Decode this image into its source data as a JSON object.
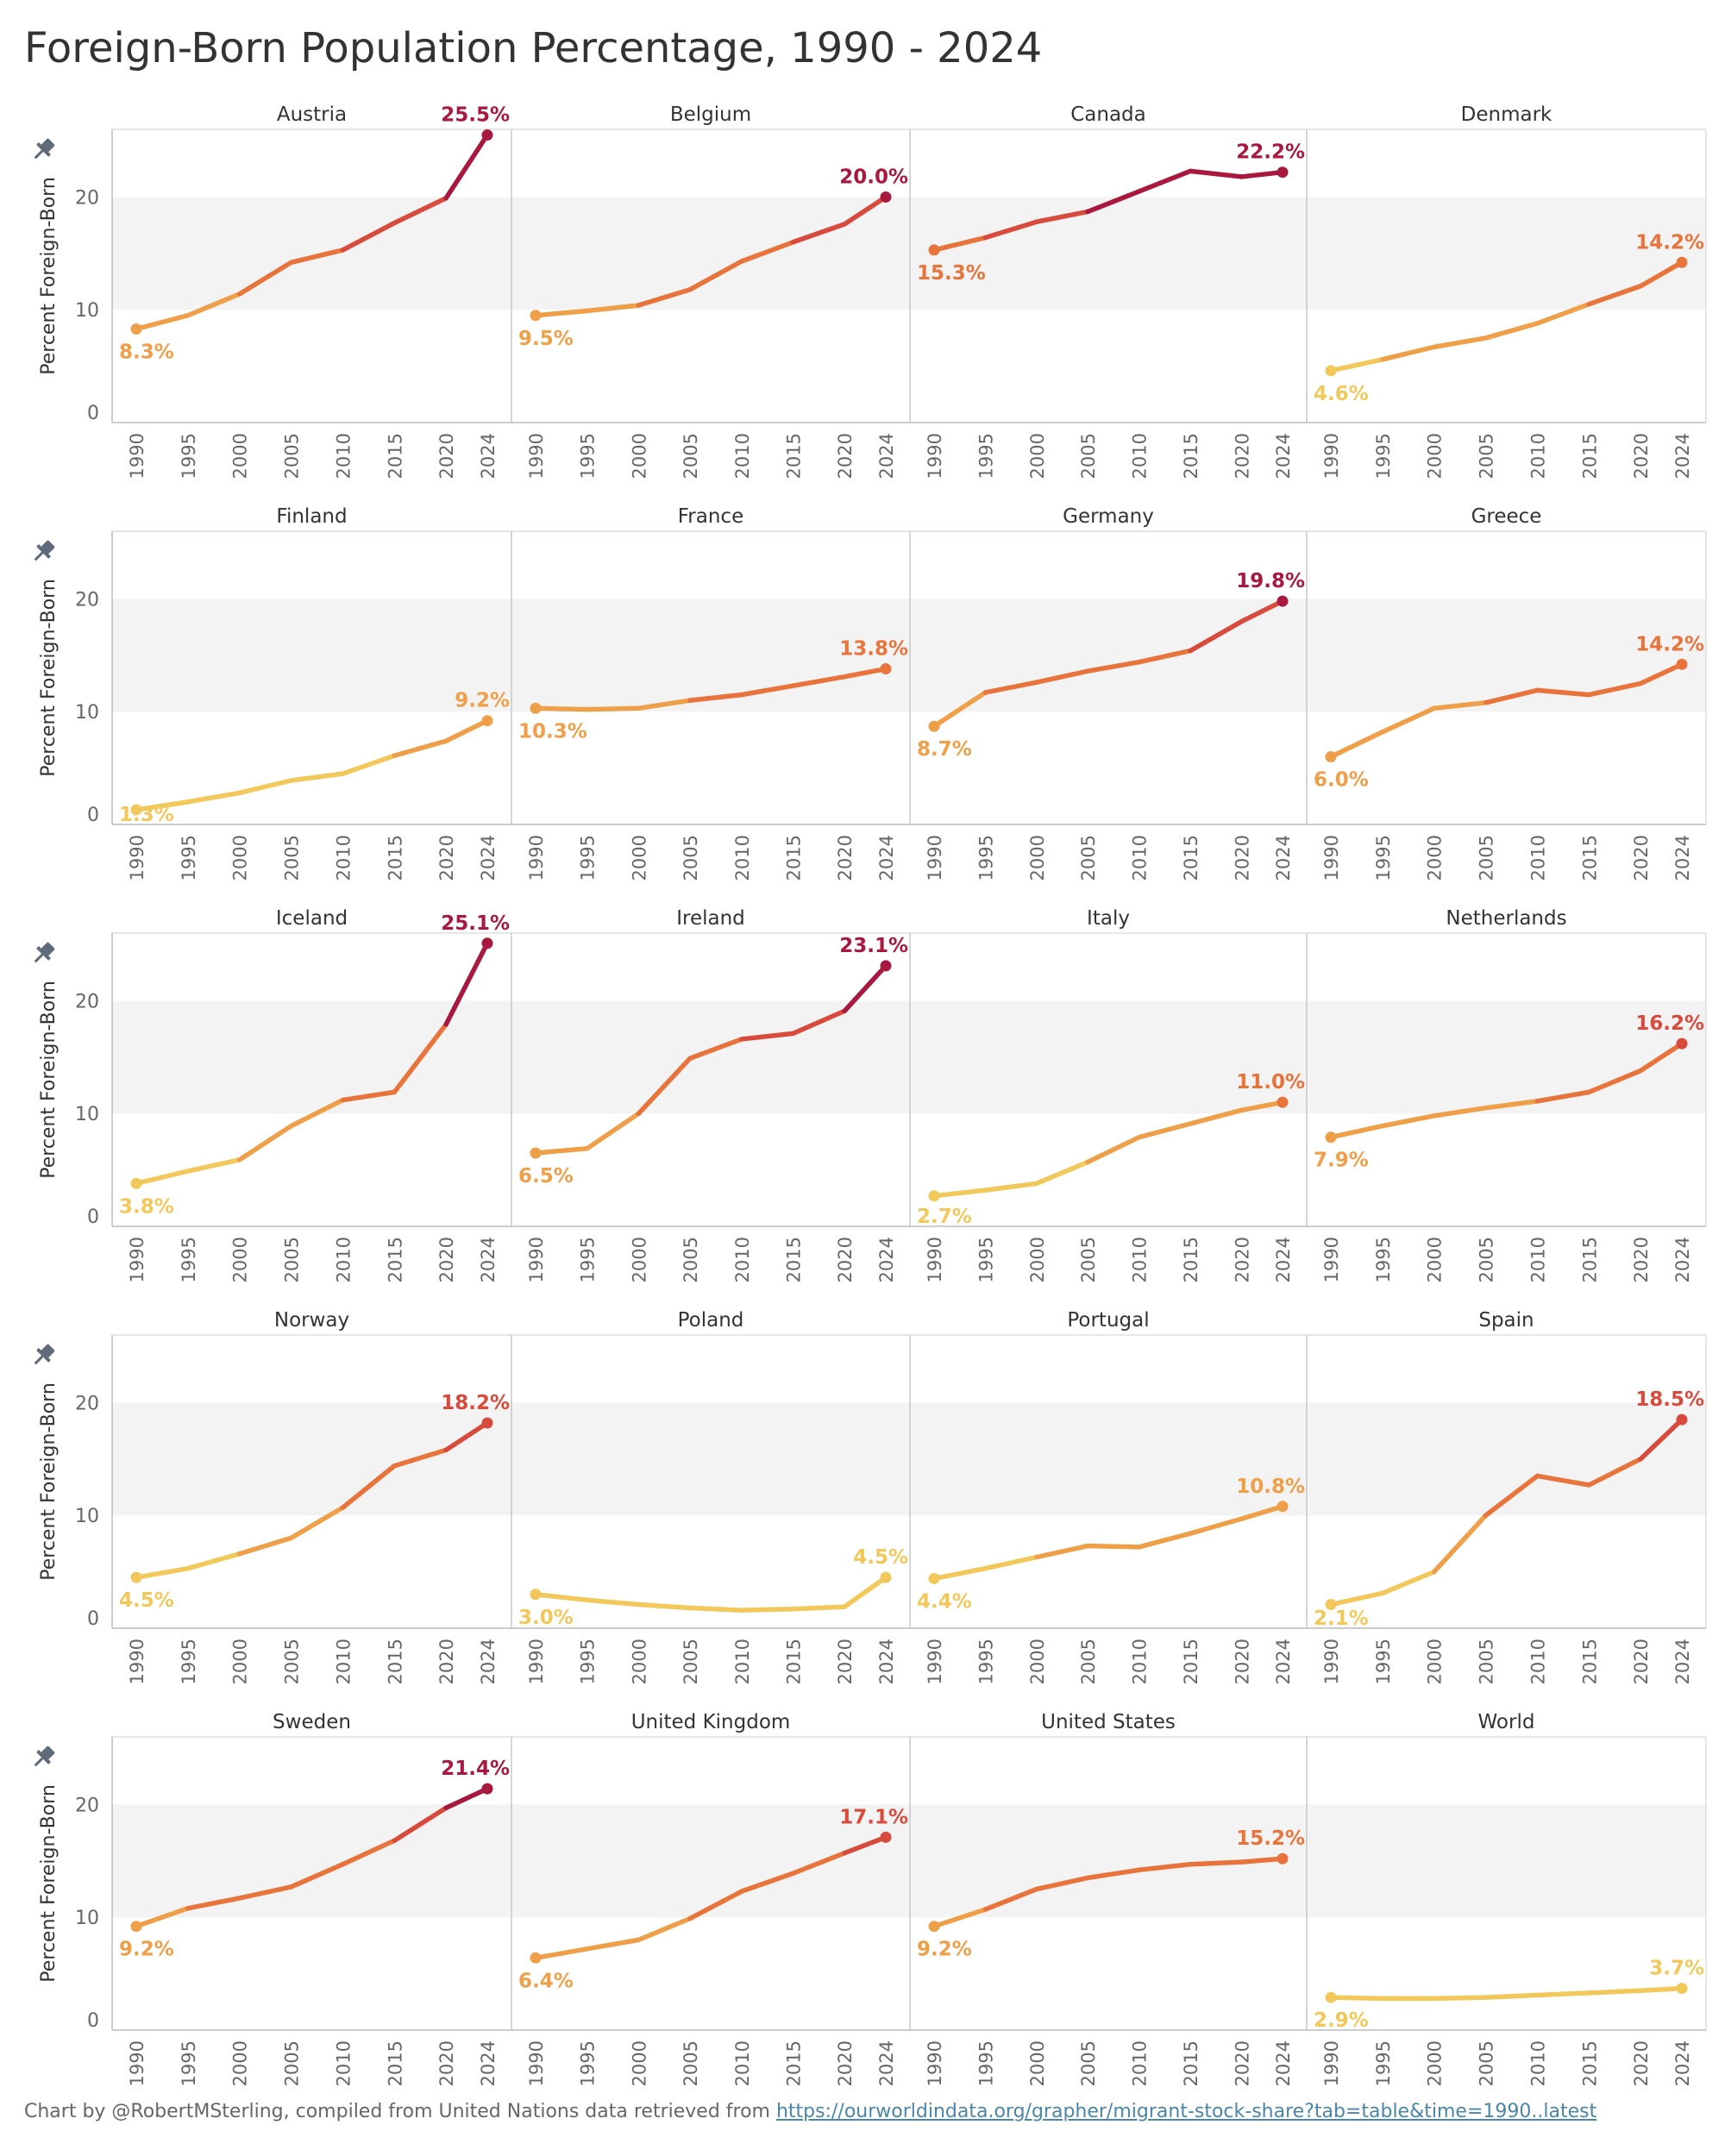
{
  "title": "Foreign-Born  Population Percentage, 1990 - 2024",
  "footer": {
    "prefix": "Chart by @RobertMSterling, compiled from United Nations data retrieved from ",
    "link_text": "https://ourworldindata.org/grapher/migrant-stock-share?tab=table&time=1990..latest"
  },
  "chart_data": {
    "type": "line",
    "layout": "small-multiples",
    "ylabel": "Percent Foreign-Born",
    "x": [
      1990,
      1995,
      2000,
      2005,
      2010,
      2015,
      2020,
      2024
    ],
    "y_ticks": [
      0,
      10,
      20
    ],
    "ylim": [
      0,
      26
    ],
    "band": [
      10,
      20
    ],
    "color_scale": [
      "#f2c85b",
      "#ef9f48",
      "#e8743b",
      "#d84a3c",
      "#a8183f"
    ],
    "series": [
      {
        "name": "Austria",
        "values": [
          8.3,
          9.5,
          11.4,
          14.2,
          15.3,
          17.7,
          19.9,
          25.5
        ],
        "first_label": "8.3%",
        "last_label": "25.5%"
      },
      {
        "name": "Belgium",
        "values": [
          9.5,
          9.9,
          10.4,
          11.8,
          14.3,
          16.0,
          17.6,
          20.0
        ],
        "first_label": "9.5%",
        "last_label": "20.0%"
      },
      {
        "name": "Canada",
        "values": [
          15.3,
          16.4,
          17.8,
          18.7,
          20.5,
          22.3,
          21.8,
          22.2
        ],
        "first_label": "15.3%",
        "last_label": "22.2%"
      },
      {
        "name": "Denmark",
        "values": [
          4.6,
          5.6,
          6.7,
          7.5,
          8.8,
          10.5,
          12.1,
          14.2
        ],
        "first_label": "4.6%",
        "last_label": "14.2%"
      },
      {
        "name": "Finland",
        "values": [
          1.3,
          2.0,
          2.8,
          3.9,
          4.5,
          6.1,
          7.4,
          9.2
        ],
        "first_label": "1.3%",
        "last_label": "9.2%"
      },
      {
        "name": "France",
        "values": [
          10.3,
          10.2,
          10.3,
          11.0,
          11.5,
          12.3,
          13.1,
          13.8
        ],
        "first_label": "10.3%",
        "last_label": "13.8%"
      },
      {
        "name": "Germany",
        "values": [
          8.7,
          11.7,
          12.6,
          13.6,
          14.4,
          15.4,
          18.0,
          19.8
        ],
        "first_label": "8.7%",
        "last_label": "19.8%"
      },
      {
        "name": "Greece",
        "values": [
          6.0,
          8.2,
          10.3,
          10.8,
          11.9,
          11.5,
          12.5,
          14.2
        ],
        "first_label": "6.0%",
        "last_label": "14.2%"
      },
      {
        "name": "Iceland",
        "values": [
          3.8,
          4.9,
          5.9,
          8.9,
          11.2,
          11.9,
          17.9,
          25.1
        ],
        "first_label": "3.8%",
        "last_label": "25.1%"
      },
      {
        "name": "Ireland",
        "values": [
          6.5,
          6.9,
          10.0,
          14.9,
          16.6,
          17.1,
          19.1,
          23.1
        ],
        "first_label": "6.5%",
        "last_label": "23.1%"
      },
      {
        "name": "Italy",
        "values": [
          2.7,
          3.2,
          3.8,
          5.7,
          7.9,
          9.1,
          10.3,
          11.0
        ],
        "first_label": "2.7%",
        "last_label": "11.0%"
      },
      {
        "name": "Netherlands",
        "values": [
          7.9,
          8.9,
          9.8,
          10.5,
          11.1,
          11.9,
          13.8,
          16.2
        ],
        "first_label": "7.9%",
        "last_label": "16.2%"
      },
      {
        "name": "Norway",
        "values": [
          4.5,
          5.3,
          6.6,
          8.0,
          10.7,
          14.4,
          15.8,
          18.2
        ],
        "first_label": "4.5%",
        "last_label": "18.2%"
      },
      {
        "name": "Poland",
        "values": [
          3.0,
          2.5,
          2.1,
          1.8,
          1.6,
          1.7,
          1.9,
          4.5
        ],
        "first_label": "3.0%",
        "last_label": "4.5%"
      },
      {
        "name": "Portugal",
        "values": [
          4.4,
          5.3,
          6.3,
          7.3,
          7.2,
          8.4,
          9.7,
          10.8
        ],
        "first_label": "4.4%",
        "last_label": "10.8%"
      },
      {
        "name": "Spain",
        "values": [
          2.1,
          3.1,
          5.0,
          10.0,
          13.5,
          12.7,
          15.0,
          18.5
        ],
        "first_label": "2.1%",
        "last_label": "18.5%"
      },
      {
        "name": "Sweden",
        "values": [
          9.2,
          10.8,
          11.7,
          12.7,
          14.7,
          16.8,
          19.7,
          21.4
        ],
        "first_label": "9.2%",
        "last_label": "21.4%"
      },
      {
        "name": "United Kingdom",
        "values": [
          6.4,
          7.2,
          8.0,
          9.9,
          12.3,
          13.9,
          15.7,
          17.1
        ],
        "first_label": "6.4%",
        "last_label": "17.1%"
      },
      {
        "name": "United States",
        "values": [
          9.2,
          10.7,
          12.5,
          13.5,
          14.2,
          14.7,
          14.9,
          15.2
        ],
        "first_label": "9.2%",
        "last_label": "15.2%"
      },
      {
        "name": "World",
        "values": [
          2.9,
          2.8,
          2.8,
          2.9,
          3.1,
          3.3,
          3.5,
          3.7
        ],
        "first_label": "2.9%",
        "last_label": "3.7%"
      }
    ]
  }
}
